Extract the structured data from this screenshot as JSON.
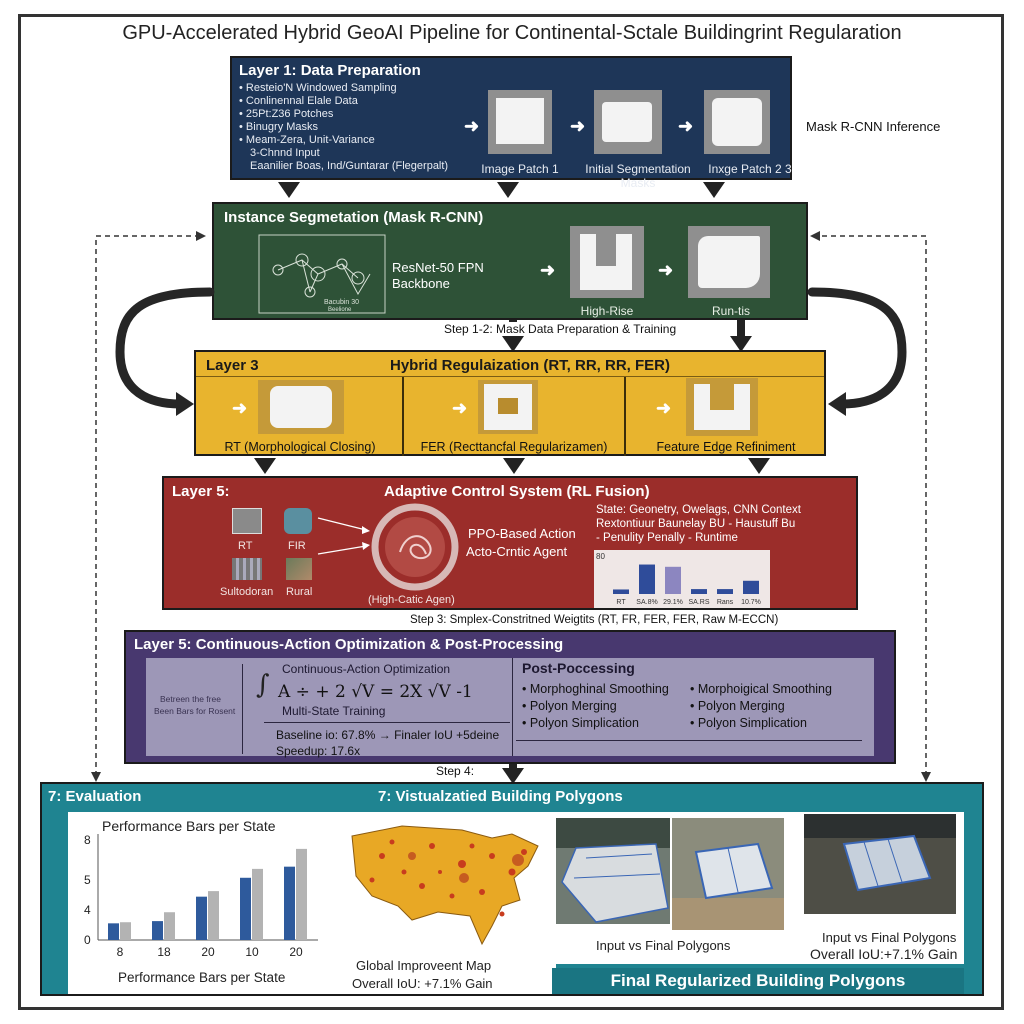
{
  "title": "GPU-Accelerated Hybrid GeoAI Pipeline for Continental-Sctale Buildingrint Regularation",
  "layer1": {
    "title": "Layer 1: Data Preparation",
    "bullets": [
      "• Resteio'N Windowed Sampling",
      "• Conlinennal Elale Data",
      "• 25Pt:Z36 Potches",
      "• Binugry Masks",
      "• Meam-Zera, Unit-Variance",
      "3-Chnnd Input",
      "Eaanilier Boas, Ind/Guntarar (Flegerpalt)"
    ],
    "captions": [
      "Image Patch 1",
      "Initial Segmentation Masks",
      "Inxge Patch 2 3"
    ],
    "side_label": "Mask R-CNN Inference"
  },
  "layer2": {
    "title": "Instance Segmetation (Mask R-CNN)",
    "backbone": "ResNet-50 FPN",
    "backbone2": "Backbone",
    "diagram_label": "Bacubin 30",
    "diagram_label2": "Beelione",
    "captions": [
      "High-Rise",
      "Run-tis"
    ]
  },
  "step12": "Step 1-2: Mask Data Preparation & Training",
  "layer3": {
    "label": "Layer 3",
    "title": "Hybrid Regulaization (RT, RR, RR, FER)",
    "captions": [
      "RT (Morphological Closing)",
      "FER (Recttancfal Regularizamen)",
      "Feature Edge Refiniment"
    ]
  },
  "layer5a": {
    "label": "Layer 5:",
    "title": "Adaptive Control System (RL Fusion)",
    "icons": [
      "RT",
      "FIR",
      "Sultodoran",
      "Rural"
    ],
    "agent": "PPO-Based Action",
    "agent2": "Acto-Crntic Agent",
    "agent_caption": "(High-Catic Agen)",
    "state": "State: Geonetry, Owelags, CNN Context",
    "state2": "Rextontiuur Baunelay BU - Haustuff Bu",
    "state3": "- Penulity Penally - Runtime",
    "chart_ytick": "80",
    "chart_labels": [
      "RT",
      "SA.8%",
      "29.1%",
      "SA.RS",
      "Rans",
      "10.7%"
    ]
  },
  "step3": "Step 3: Smplex-Constritned Weigtits (RT, FR, FER, FER, Raw M-ECCN)",
  "layer5b": {
    "title": "Layer 5: Continuous-Action Optimization & Post-Processing",
    "left_note": "Betreen the free",
    "left_note2": "Been Bars for Rosent",
    "opt_title": "Continuous-Action Optimization",
    "formula": "A ÷ + 2  √V = 2X √V -1",
    "training": "Multi-State Training",
    "baseline": "Baseline io: 67.8% → Finaler IoU +5deine",
    "speedup": "Speedup: 17.6x",
    "pp_title": "Post-Poccessing",
    "pp_left": [
      "• Morphoghinal Smoothing",
      "• Polyon Merging",
      "• Polyon Simplication"
    ],
    "pp_right": [
      "• Morphoigical Smoothing",
      "• Polyon Merging",
      "• Polyon Simplication"
    ]
  },
  "step4": "Step 4:",
  "eval": {
    "label": "7: Evaluation",
    "title": "7: Vistualzatied Building Polygons",
    "chart_title": "Performance Bars per State",
    "chart_xlabel": "Performance Bars per State",
    "map_caption": "Global Improveent Map",
    "map_caption2": "Overall IoU: +7.1% Gain",
    "photo_caption": "Input vs Final Polygons",
    "photo_caption2": "Input vs Final Polygons",
    "photo_caption3": "Overall IoU:+7.1% Gain",
    "final": "Final Regularized Building Polygons"
  },
  "chart_data": [
    {
      "type": "bar",
      "title": "Performance Bars per State",
      "xlabel": "Performance Bars per State",
      "ylabel": "",
      "categories": [
        "8",
        "18",
        "20",
        "10",
        "20"
      ],
      "series": [
        {
          "values": [
            1.5,
            1.7,
            3.9,
            5.6,
            6.6
          ]
        },
        {
          "values": [
            1.6,
            2.5,
            4.4,
            6.4,
            8.2
          ]
        }
      ],
      "yticks": [
        "8",
        "5",
        "4",
        "0"
      ],
      "ylim": [
        0,
        9
      ],
      "colors": [
        "#2e5a9c",
        "#b3b3b3"
      ]
    },
    {
      "type": "bar",
      "title": "",
      "categories": [
        "RT",
        "SA.8%",
        "29.1%",
        "SA.RS",
        "Rans",
        "10.7%"
      ],
      "series": [
        {
          "values": [
            12,
            78,
            72,
            13,
            13,
            35
          ]
        }
      ],
      "ylim": [
        0,
        90
      ],
      "colors": [
        "#2f4c9a"
      ]
    }
  ]
}
